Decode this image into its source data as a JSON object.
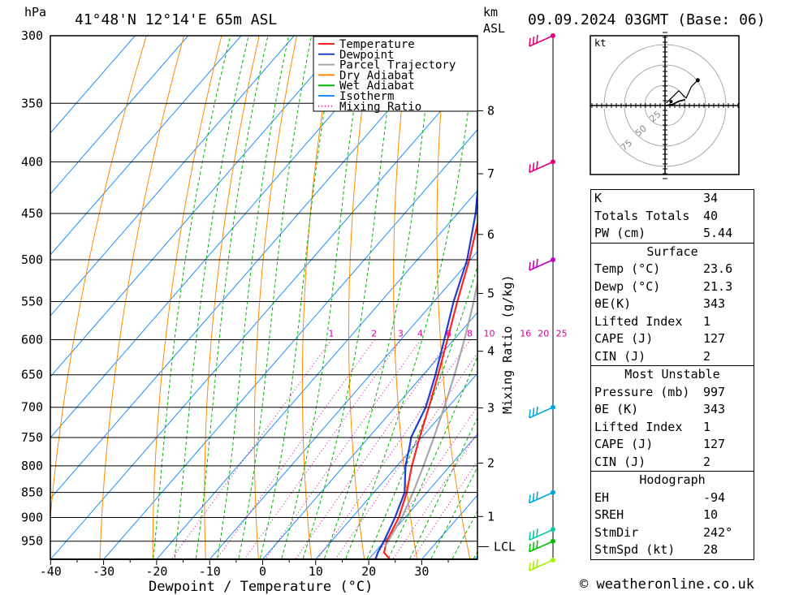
{
  "header": {
    "pressure_unit": "hPa",
    "location": "41°48'N  12°14'E  65m  ASL",
    "height_unit_line1": "km",
    "height_unit_line2": "ASL",
    "valid_time": "09.09.2024  03GMT  (Base: 06)"
  },
  "chart_data": {
    "type": "skew-t",
    "xlabel": "Dewpoint / Temperature (°C)",
    "ylabel_right": "Mixing Ratio (g/kg)",
    "pressure_levels": [
      300,
      350,
      400,
      450,
      500,
      550,
      600,
      650,
      700,
      750,
      800,
      850,
      900,
      950
    ],
    "pressure_range": [
      300,
      990
    ],
    "temperature_ticks": [
      -40,
      -30,
      -20,
      -10,
      0,
      10,
      20,
      30
    ],
    "km_ticks": [
      {
        "label": "1",
        "p": 898
      },
      {
        "label": "2",
        "p": 795
      },
      {
        "label": "3",
        "p": 701
      },
      {
        "label": "4",
        "p": 616
      },
      {
        "label": "5",
        "p": 540
      },
      {
        "label": "6",
        "p": 472
      },
      {
        "label": "7",
        "p": 411
      },
      {
        "label": "8",
        "p": 356
      }
    ],
    "lcl": {
      "label": "LCL",
      "p": 962
    },
    "mixing_ratio_labels": [
      "1",
      "2",
      "3",
      "4",
      "6",
      "8",
      "10",
      "16",
      "20",
      "25"
    ],
    "mixing_ratio_values": [
      1,
      2,
      3,
      4,
      6,
      8,
      10,
      16,
      20,
      25
    ],
    "legend": [
      {
        "name": "Temperature",
        "color": "#ff2222",
        "style": "solid"
      },
      {
        "name": "Dewpoint",
        "color": "#1f3fd0",
        "style": "solid"
      },
      {
        "name": "Parcel Trajectory",
        "color": "#a8a8a8",
        "style": "solid"
      },
      {
        "name": "Dry Adiabat",
        "color": "#ff8c00",
        "style": "solid"
      },
      {
        "name": "Wet Adiabat",
        "color": "#00b400",
        "style": "solid"
      },
      {
        "name": "Isotherm",
        "color": "#1e90ff",
        "style": "solid"
      },
      {
        "name": "Mixing Ratio",
        "color": "#d0009a",
        "style": "dotted"
      }
    ],
    "series": [
      {
        "name": "Temperature",
        "color": "#ff2222",
        "points": [
          [
            990,
            24.0
          ],
          [
            975,
            21.8
          ],
          [
            950,
            20.4
          ],
          [
            900,
            18.8
          ],
          [
            850,
            16.2
          ],
          [
            800,
            12.8
          ],
          [
            750,
            9.6
          ],
          [
            700,
            6.4
          ],
          [
            650,
            2.8
          ],
          [
            600,
            -1.2
          ],
          [
            550,
            -5.6
          ],
          [
            500,
            -10.2
          ],
          [
            450,
            -15.8
          ],
          [
            400,
            -22.6
          ],
          [
            350,
            -31.2
          ],
          [
            300,
            -40.6
          ]
        ]
      },
      {
        "name": "Dewpoint",
        "color": "#1f3fd0",
        "points": [
          [
            990,
            21.3
          ],
          [
            975,
            20.6
          ],
          [
            950,
            19.9
          ],
          [
            900,
            18.1
          ],
          [
            850,
            15.8
          ],
          [
            800,
            11.6
          ],
          [
            760,
            8.8
          ],
          [
            750,
            8.0
          ],
          [
            700,
            5.8
          ],
          [
            650,
            2.3
          ],
          [
            600,
            -1.8
          ],
          [
            550,
            -6.3
          ],
          [
            500,
            -10.6
          ],
          [
            450,
            -16.6
          ],
          [
            400,
            -24.2
          ],
          [
            350,
            -33.6
          ],
          [
            300,
            -43.4
          ]
        ]
      },
      {
        "name": "Parcel Trajectory",
        "color": "#a8a8a8",
        "points": [
          [
            962,
            21.0
          ],
          [
            900,
            19.4
          ],
          [
            850,
            17.4
          ],
          [
            800,
            15.0
          ],
          [
            750,
            12.3
          ],
          [
            700,
            9.3
          ],
          [
            650,
            5.9
          ],
          [
            600,
            2.0
          ],
          [
            550,
            -2.5
          ],
          [
            500,
            -7.8
          ],
          [
            450,
            -14.2
          ],
          [
            400,
            -21.9
          ],
          [
            350,
            -31.3
          ],
          [
            300,
            -43.0
          ]
        ]
      }
    ],
    "wind_barbs": [
      {
        "p": 300,
        "color": "#e0007a"
      },
      {
        "p": 400,
        "color": "#e0007a"
      },
      {
        "p": 500,
        "color": "#c000c0"
      },
      {
        "p": 700,
        "color": "#00a8e0"
      },
      {
        "p": 850,
        "color": "#00a8e0"
      },
      {
        "p": 925,
        "color": "#00c8a0"
      },
      {
        "p": 950,
        "color": "#00c000"
      },
      {
        "p": 1000,
        "color": "#aaee00"
      }
    ],
    "hodograph": {
      "unit": "kt",
      "rings": [
        25,
        50,
        75
      ],
      "trace": [
        [
          0.3,
          -0.1
        ],
        [
          7,
          1
        ],
        [
          13,
          4
        ],
        [
          19,
          5.5
        ]
      ],
      "upper_trace": [
        [
          1.2,
          2.5
        ],
        [
          8,
          9
        ],
        [
          13,
          14
        ],
        [
          20,
          7
        ],
        [
          25,
          18
        ],
        [
          31,
          24
        ]
      ]
    }
  },
  "stats": {
    "rows1": [
      {
        "label": "K",
        "value": "34"
      },
      {
        "label": "Totals Totals",
        "value": "40"
      },
      {
        "label": "PW (cm)",
        "value": "5.44"
      }
    ],
    "surface": {
      "title": "Surface",
      "rows": [
        {
          "label": "Temp (°C)",
          "value": "23.6"
        },
        {
          "label": "Dewp (°C)",
          "value": "21.3"
        },
        {
          "label": "θE(K)",
          "value": "343"
        },
        {
          "label": "Lifted Index",
          "value": "1"
        },
        {
          "label": "CAPE (J)",
          "value": "127"
        },
        {
          "label": "CIN (J)",
          "value": "2"
        }
      ]
    },
    "most_unstable": {
      "title": "Most Unstable",
      "rows": [
        {
          "label": "Pressure (mb)",
          "value": "997"
        },
        {
          "label": "θE (K)",
          "value": "343"
        },
        {
          "label": "Lifted Index",
          "value": "1"
        },
        {
          "label": "CAPE (J)",
          "value": "127"
        },
        {
          "label": "CIN (J)",
          "value": "2"
        }
      ]
    },
    "hodograph": {
      "title": "Hodograph",
      "rows": [
        {
          "label": "EH",
          "value": "-94"
        },
        {
          "label": "SREH",
          "value": "10"
        },
        {
          "label": "StmDir",
          "value": "242°"
        },
        {
          "label": "StmSpd (kt)",
          "value": "28"
        }
      ]
    }
  },
  "footer": "© weatheronline.co.uk"
}
